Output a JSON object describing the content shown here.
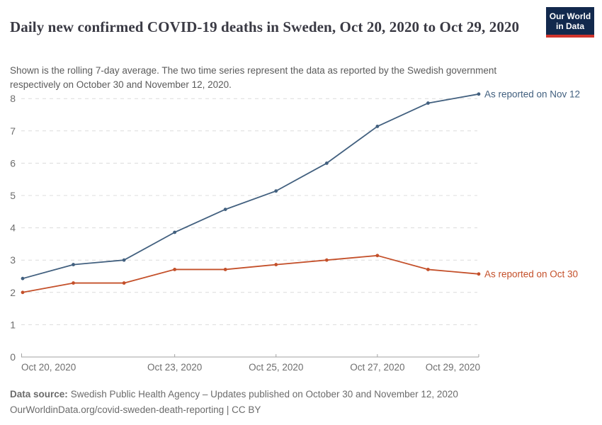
{
  "header": {
    "title": "Daily new confirmed COVID-19 deaths in Sweden, Oct 20, 2020 to Oct 29, 2020",
    "subtitle": "Shown is the rolling 7-day average. The two time series represent the data as reported by the Swedish government respectively on October 30 and November 12, 2020.",
    "logo": {
      "line1": "Our World",
      "line2": "in Data",
      "bg_color": "#12294d",
      "accent_color": "#d0342c"
    }
  },
  "chart_data": {
    "type": "line",
    "title": "Daily new confirmed COVID-19 deaths in Sweden, Oct 20, 2020 to Oct 29, 2020",
    "x": [
      "Oct 20, 2020",
      "Oct 21, 2020",
      "Oct 22, 2020",
      "Oct 23, 2020",
      "Oct 24, 2020",
      "Oct 25, 2020",
      "Oct 26, 2020",
      "Oct 27, 2020",
      "Oct 28, 2020",
      "Oct 29, 2020"
    ],
    "series": [
      {
        "name": "As reported on Nov 12",
        "color": "#42607f",
        "values": [
          2.43,
          2.86,
          3.0,
          3.86,
          4.57,
          5.14,
          6.0,
          7.14,
          7.86,
          8.14
        ]
      },
      {
        "name": "As reported on Oct 30",
        "color": "#c4502a",
        "values": [
          2.0,
          2.29,
          2.29,
          2.71,
          2.71,
          2.86,
          3.0,
          3.14,
          2.71,
          2.57
        ]
      }
    ],
    "ylim": [
      0,
      8
    ],
    "yticks": [
      0,
      1,
      2,
      3,
      4,
      5,
      6,
      7,
      8
    ],
    "xticks": [
      {
        "index": 0,
        "label": "Oct 20, 2020",
        "anchor": "start",
        "tickmark": false
      },
      {
        "index": 3,
        "label": "Oct 23, 2020",
        "anchor": "middle",
        "tickmark": true
      },
      {
        "index": 5,
        "label": "Oct 25, 2020",
        "anchor": "middle",
        "tickmark": true
      },
      {
        "index": 7,
        "label": "Oct 27, 2020",
        "anchor": "middle",
        "tickmark": true
      },
      {
        "index": 9,
        "label": "Oct 29, 2020",
        "anchor": "end",
        "tickmark": true
      }
    ],
    "grid": "horizontal-dashed",
    "legend_position": "end-of-line-labels",
    "colors": {
      "grid": "#dcdcdc",
      "axis": "#a3a3a3",
      "tick_text": "#6e6e6e"
    }
  },
  "footer": {
    "source_label": "Data source:",
    "source_text": "Swedish Public Health Agency – Updates published on October 30 and November 12, 2020",
    "link_line": "OurWorldinData.org/covid-sweden-death-reporting | CC BY"
  }
}
